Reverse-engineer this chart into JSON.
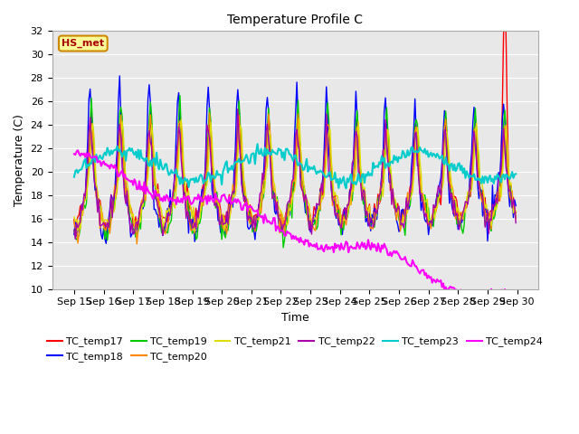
{
  "title": "Temperature Profile C",
  "xlabel": "Time",
  "ylabel": "Temperature (C)",
  "ylim": [
    10,
    32
  ],
  "yticks": [
    10,
    12,
    14,
    16,
    18,
    20,
    22,
    24,
    26,
    28,
    30,
    32
  ],
  "date_labels": [
    "Sep 15",
    "Sep 16",
    "Sep 17",
    "Sep 18",
    "Sep 19",
    "Sep 20",
    "Sep 21",
    "Sep 22",
    "Sep 23",
    "Sep 24",
    "Sep 25",
    "Sep 26",
    "Sep 27",
    "Sep 28",
    "Sep 29",
    "Sep 30"
  ],
  "legend_label": "HS_met",
  "series_names": [
    "TC_temp17",
    "TC_temp18",
    "TC_temp19",
    "TC_temp20",
    "TC_temp21",
    "TC_temp22",
    "TC_temp23",
    "TC_temp24"
  ],
  "series_colors": [
    "#ff0000",
    "#0000ff",
    "#00cc00",
    "#ff8800",
    "#dddd00",
    "#aa00aa",
    "#00cccc",
    "#ff00ff"
  ],
  "background_color": "#ffffff",
  "plot_bg_color": "#e8e8e8",
  "title_fontsize": 10,
  "axis_fontsize": 9,
  "tick_fontsize": 8,
  "linewidth": 1.0
}
